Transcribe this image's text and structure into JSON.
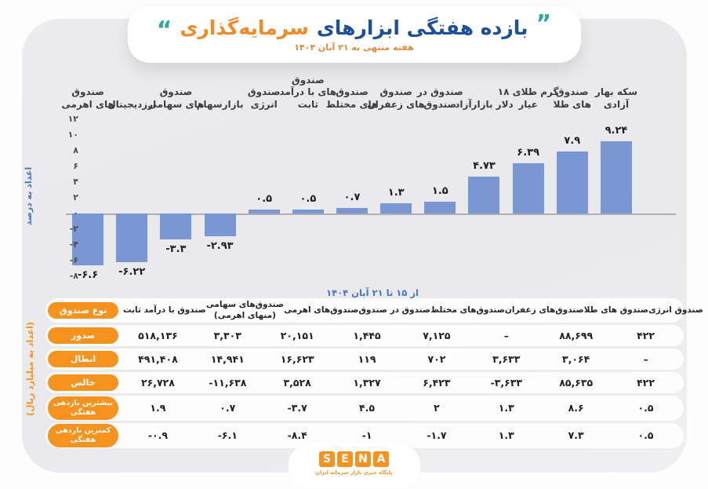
{
  "header": {
    "quote_open": "”",
    "quote_close": "“",
    "title_main": "بازده هفتگی ابزارهای",
    "title_accent": "سرمایه‌گذاری",
    "subtitle": "هفته منتهی به ۲۱ آبان ۱۴۰۴"
  },
  "chart_data": {
    "type": "bar",
    "title": "بازده هفتگی ابزارهای سرمایه‌گذاری",
    "caption": "از ۱۵ تا ۲۱ آبان ۱۴۰۴",
    "ylabel": "اعداد به درصد",
    "xlabel": "",
    "ylim": [
      -8,
      12
    ],
    "grid": false,
    "legend": false,
    "bar_color": "#7B97D3",
    "categories": [
      "صندوق های اهرمی",
      "ارزدیجیتال",
      "صندوق های سهامی",
      "بازارسهام",
      "صندوق انرژی",
      "صندوق های با درآمد ثابت",
      "صندوق های مختلط",
      "صندوق های زعفران",
      "صندوق در صندوق",
      "دلار بازارآزاد",
      "گرم طلای ۱۸ عیار",
      "صندوق های طلا",
      "سکه بهار آزادی"
    ],
    "categories_lines": [
      [
        "صندوق",
        "های اهرمی"
      ],
      [
        "ارزدیجیتال"
      ],
      [
        "صندوق",
        "های سهامی"
      ],
      [
        "بازارسهام"
      ],
      [
        "صندوق",
        "انرژی"
      ],
      [
        "صندوق",
        "های با درآمد",
        "ثابت"
      ],
      [
        "صندوق",
        "های مختلط"
      ],
      [
        "صندوق",
        "های زعفران"
      ],
      [
        "صندوق در",
        "صندوق"
      ],
      [
        "دلار بازارآزاد"
      ],
      [
        "گرم طلای ۱۸",
        "عیار"
      ],
      [
        "صندوق",
        "های طلا"
      ],
      [
        "سکه بهار",
        "آزادی"
      ]
    ],
    "values": [
      -6.6,
      -6.22,
      -3.3,
      -2.93,
      0.5,
      0.5,
      0.7,
      1.3,
      1.5,
      4.73,
      6.39,
      7.9,
      9.24
    ],
    "value_labels": [
      "-۶.۶",
      "-۶.۲۲",
      "-۳.۳",
      "-۲.۹۳",
      "۰.۵",
      "۰.۵",
      "۰.۷",
      "۱.۳",
      "۱.۵",
      "۴.۷۳",
      "۶.۳۹",
      "۷.۹",
      "۹.۲۴"
    ],
    "yticks": [
      12,
      10,
      8,
      6,
      4,
      2,
      0,
      -2,
      -4,
      -6,
      -8
    ],
    "ytick_labels": [
      "۱۲",
      "۱۰",
      "۸",
      "۶",
      "۴",
      "۲",
      "۰",
      "-۲",
      "-۴",
      "-۶",
      "-۸"
    ]
  },
  "table": {
    "unit_label": "(اعداد به میلیارد ریال)",
    "row_header_title": "نوع صندوق",
    "columns": [
      "صندوق با درآمد ثابت",
      "صندوق‌های سهامی (منهای اهرمی)",
      "صندوق‌های اهرمی",
      "صندوق در صندوق",
      "صندوق‌های مختلط",
      "صندوق‌های زعفران",
      "صندوق های طلا",
      "صندوق انرژی"
    ],
    "columns_lines": [
      [
        "صندوق با درآمد ثابت"
      ],
      [
        "صندوق‌های سهامی",
        "(منهای اهرمی)"
      ],
      [
        "صندوق‌های اهرمی"
      ],
      [
        "صندوق در صندوق"
      ],
      [
        "صندوق‌های مختلط"
      ],
      [
        "صندوق‌های زعفران"
      ],
      [
        "صندوق های طلا"
      ],
      [
        "صندوق انرژی"
      ]
    ],
    "rows": [
      {
        "label": "صدور",
        "label_lines": [
          "صدور"
        ],
        "values": [
          "۵۱۸,۱۳۶",
          "۳,۳۰۳",
          "۲۰,۱۵۱",
          "۱,۴۴۵",
          "۷,۱۲۵",
          "–",
          "۸۸,۶۹۹",
          "۴۲۲"
        ]
      },
      {
        "label": "ابطال",
        "label_lines": [
          "ابطال"
        ],
        "values": [
          "۴۹۱,۴۰۸",
          "۱۴,۹۴۱",
          "۱۶,۶۲۳",
          "۱۱۹",
          "۷۰۲",
          "۳,۶۳۳",
          "۳,۰۶۴",
          "–"
        ]
      },
      {
        "label": "خالص",
        "label_lines": [
          "خالص"
        ],
        "values": [
          "۲۶,۷۲۸",
          "-۱۱,۶۳۸",
          "۳,۵۲۸",
          "۱,۳۲۷",
          "۶,۴۲۳",
          "-۳,۶۳۳",
          "۸۵,۶۳۵",
          "۴۲۲"
        ]
      },
      {
        "label": "بیشترین بازدهی هفتگی",
        "label_lines": [
          "بیشترین بازدهی",
          "هفتگی"
        ],
        "values": [
          "۱.۹",
          "۰.۷",
          "-۳.۷",
          "۴.۵",
          "۲",
          "۱.۳",
          "۸.۶",
          "۰.۵"
        ]
      },
      {
        "label": "کمترین بازدهی هفتگی",
        "label_lines": [
          "کمترین بازدهی",
          "هفتگی"
        ],
        "values": [
          "-۰.۹",
          "-۶.۱",
          "-۸.۴",
          "-۱",
          "-۱.۷",
          "۱.۳",
          "۷.۳",
          "۰.۵"
        ]
      }
    ]
  },
  "footer": {
    "logo_letters": [
      "S",
      "E",
      "N",
      "A"
    ],
    "logo_subtext": "پایگاه خبری بازار سرمایه ایران"
  },
  "colors": {
    "accent_orange": "#F6921E",
    "title_blue": "#1D4F9A",
    "title_orange": "#F18A28",
    "quote_teal": "#2BABA0",
    "bar_blue": "#7B97D3",
    "caption_blue": "#4A77B8",
    "card_gray": "#EBEBED"
  }
}
